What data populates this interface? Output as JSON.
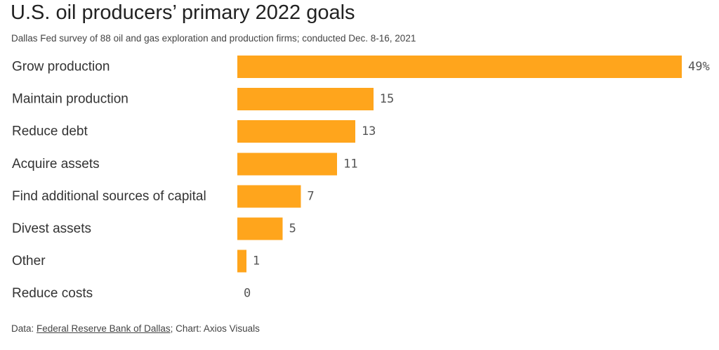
{
  "page": {
    "title": "U.S. oil producers’ primary 2022 goals",
    "subtitle": "Dallas Fed survey of 88 oil and gas exploration and production firms; conducted Dec. 8-16, 2021"
  },
  "footer": {
    "data_prefix": "Data: ",
    "source_link": "Federal Reserve Bank of Dallas",
    "chart_credit": "; Chart: Axios Visuals"
  },
  "colors": {
    "bar": "#FFA51C"
  },
  "chart_data": {
    "type": "bar",
    "orientation": "horizontal",
    "title": "U.S. oil producers’ primary 2022 goals",
    "subtitle": "Dallas Fed survey of 88 oil and gas exploration and production firms; conducted Dec. 8-16, 2021",
    "categories": [
      "Grow production",
      "Maintain production",
      "Reduce debt",
      "Acquire assets",
      "Find additional sources of capital",
      "Divest assets",
      "Other",
      "Reduce costs"
    ],
    "values": [
      49,
      15,
      13,
      11,
      7,
      5,
      1,
      0
    ],
    "value_labels": [
      "49%",
      "15",
      "13",
      "11",
      "7",
      "5",
      "1",
      "0"
    ],
    "unit": "%",
    "xlim": [
      0,
      49
    ],
    "grid": false,
    "legend": "none"
  }
}
